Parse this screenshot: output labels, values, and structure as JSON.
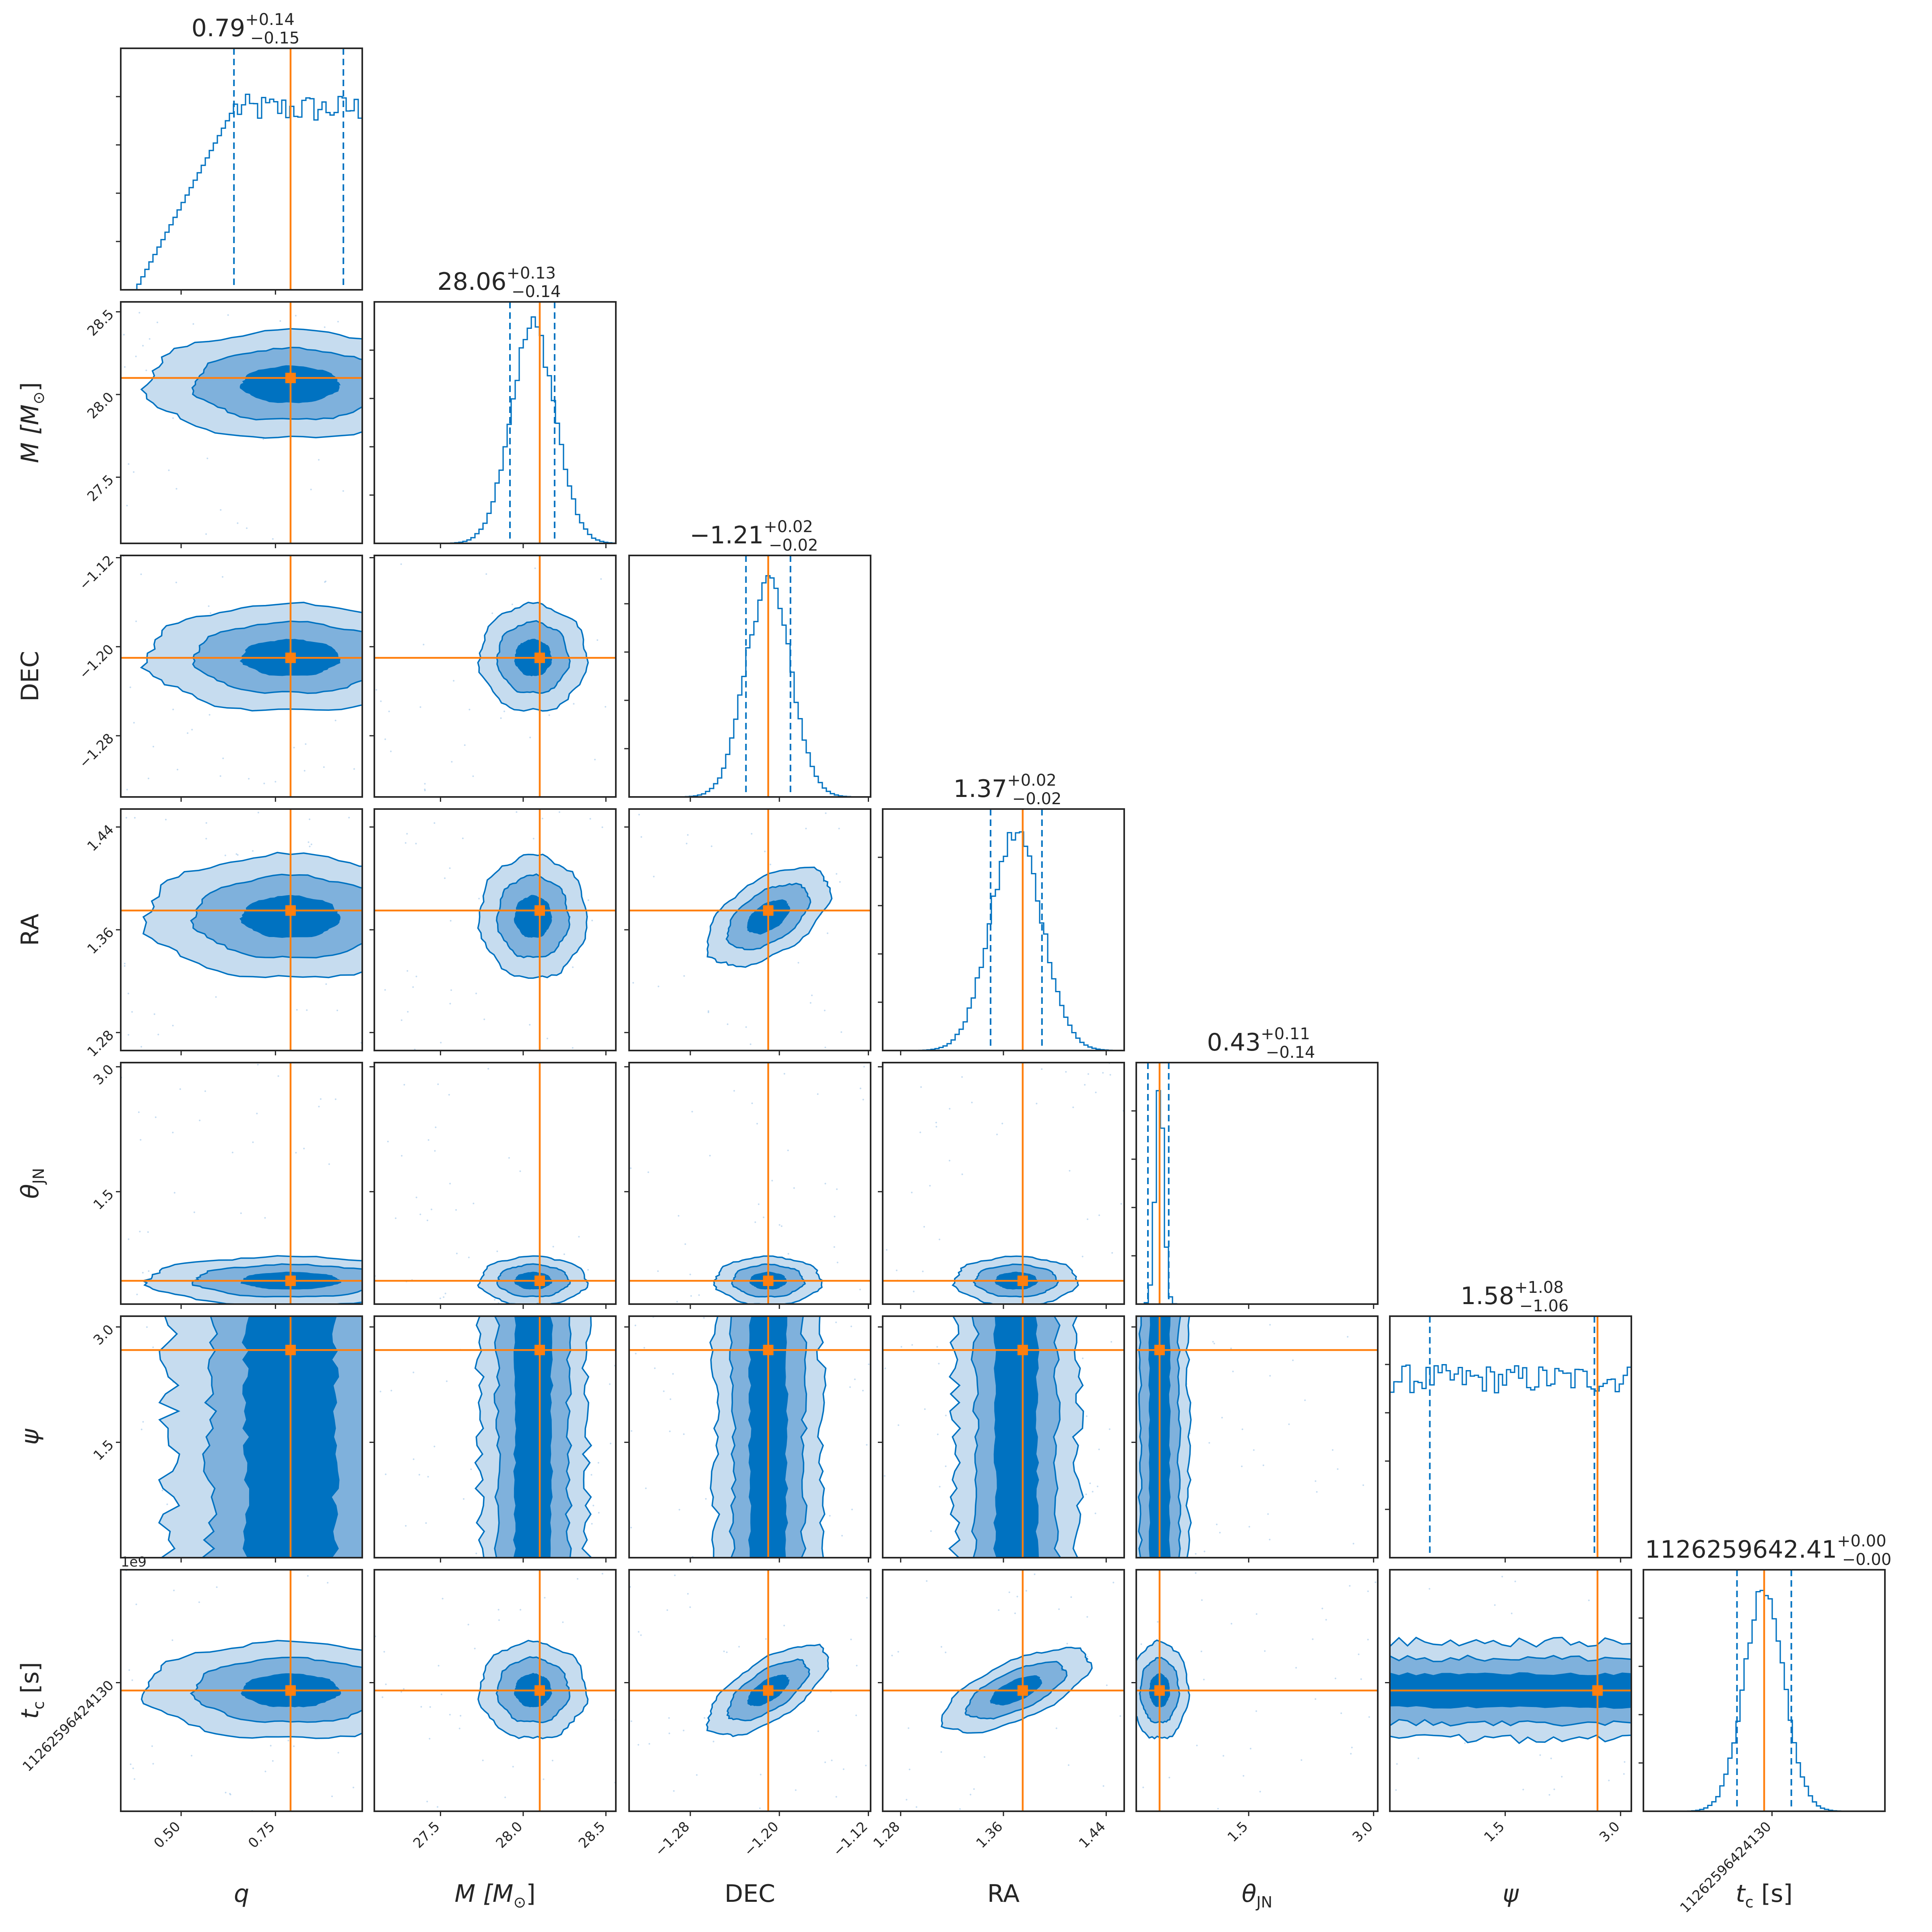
{
  "chart_data": {
    "type": "corner",
    "grid": false,
    "colors": {
      "contour_line": "#0072c1",
      "fill_levels": [
        "#c6dcef",
        "#7fb1dc",
        "#0072c1"
      ],
      "truth": "#ff7f0e",
      "histogram": "#0072c1",
      "axes": "#262626"
    },
    "parameters": [
      {
        "key": "q",
        "label": "q",
        "median": 0.79,
        "plus": 0.14,
        "minus": 0.15,
        "title_main": "0.79",
        "title_sup": "+0.14",
        "title_sub": "−0.15",
        "truth": 0.79,
        "range": [
          0.34,
          0.98
        ],
        "ticks": [
          0.5,
          0.75
        ],
        "tick_labels": [
          "0.50",
          "0.75"
        ]
      },
      {
        "key": "M",
        "label": "M [M☉]",
        "median": 28.06,
        "plus": 0.13,
        "minus": 0.14,
        "title_main": "28.06",
        "title_sup": "+0.13",
        "title_sub": "−0.14",
        "truth": 28.1,
        "range": [
          27.1,
          28.56
        ],
        "ticks": [
          27.5,
          28.0,
          28.5
        ],
        "tick_labels": [
          "27.5",
          "28.0",
          "28.5"
        ]
      },
      {
        "key": "DEC",
        "label": "DEC",
        "median": -1.21,
        "plus": 0.02,
        "minus": 0.02,
        "title_main": "−1.21",
        "title_sup": "+0.02",
        "title_sub": "−0.02",
        "truth": -1.21,
        "range": [
          -1.335,
          -1.118
        ],
        "ticks": [
          -1.28,
          -1.2,
          -1.12
        ],
        "tick_labels": [
          "−1.28",
          "−1.20",
          "−1.12"
        ]
      },
      {
        "key": "RA",
        "label": "RA",
        "median": 1.37,
        "plus": 0.02,
        "minus": 0.02,
        "title_main": "1.37",
        "title_sup": "+0.02",
        "title_sub": "−0.02",
        "truth": 1.375,
        "range": [
          1.266,
          1.454
        ],
        "ticks": [
          1.28,
          1.36,
          1.44
        ],
        "tick_labels": [
          "1.28",
          "1.36",
          "1.44"
        ]
      },
      {
        "key": "theta",
        "label": "θJN",
        "median": 0.43,
        "plus": 0.11,
        "minus": 0.14,
        "title_main": "0.43",
        "title_sup": "+0.11",
        "title_sub": "−0.14",
        "truth": 0.43,
        "range": [
          0.15,
          3.05
        ],
        "ticks": [
          1.5,
          3.0
        ],
        "tick_labels": [
          "1.5",
          "3.0"
        ]
      },
      {
        "key": "psi",
        "label": "ψ",
        "median": 1.58,
        "plus": 1.08,
        "minus": 1.06,
        "title_main": "1.58",
        "title_sup": "+1.08",
        "title_sub": "−1.06",
        "truth": 2.7,
        "range": [
          0.0,
          3.14
        ],
        "ticks": [
          1.5,
          3.0
        ],
        "tick_labels": [
          "1.5",
          "3.0"
        ]
      },
      {
        "key": "tc",
        "label": "tc [s]",
        "median": 1126259642.41,
        "plus": 0.0,
        "minus": 0.0,
        "title_main": "1126259642.41",
        "title_sup": "+0.00",
        "title_sub": "−0.00",
        "truth": 1126259642.41,
        "range": [
          1126259642.39,
          1126259642.43
        ],
        "ticks": [
          1126259642.4113
        ],
        "tick_labels": [
          "1126259642413​0"
        ]
      }
    ],
    "axis_labels": {
      "q": {
        "main": "q"
      },
      "M": {
        "main": "M [M",
        "sub": "⊙",
        "tail": "]"
      },
      "DEC": {
        "main": "DEC"
      },
      "RA": {
        "main": "RA"
      },
      "theta": {
        "main": "θ",
        "sub": "JN"
      },
      "psi": {
        "main": "ψ"
      },
      "tc": {
        "main": "t",
        "sub": "c",
        "tail": " [s]"
      }
    },
    "tc_tick_text": "1126259642413​0",
    "tc_ylabel_text": "1126259642413​0",
    "offset_text": "1e9"
  }
}
